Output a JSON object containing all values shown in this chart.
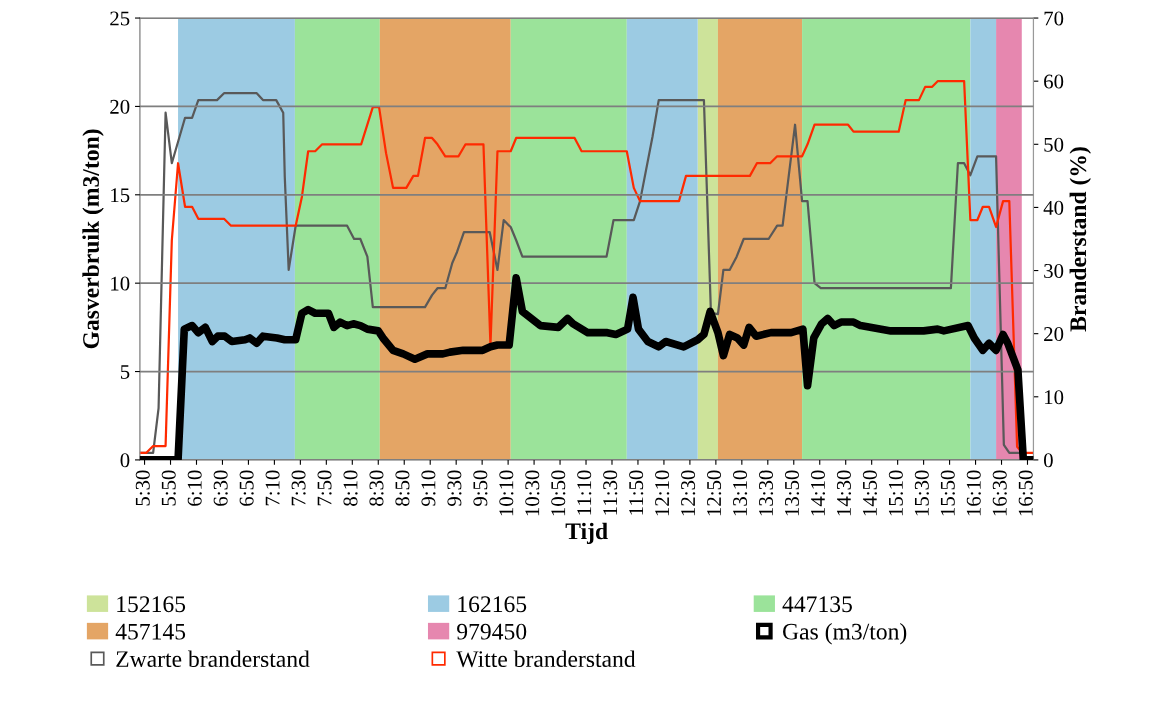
{
  "chart_data": {
    "type": "line",
    "xlabel": "Tijd",
    "ylabel": "Gasverbruik (m3/ton)",
    "y2label": "Branderstand (%)",
    "xlim": [
      5.44,
      16.91
    ],
    "xticks": [
      {
        "value": 5.5,
        "label": "5:30"
      },
      {
        "value": 5.8333,
        "label": "5:50"
      },
      {
        "value": 6.1667,
        "label": "6:10"
      },
      {
        "value": 6.5,
        "label": "6:30"
      },
      {
        "value": 6.8333,
        "label": "6:50"
      },
      {
        "value": 7.1667,
        "label": "7:10"
      },
      {
        "value": 7.5,
        "label": "7:30"
      },
      {
        "value": 7.8333,
        "label": "7:50"
      },
      {
        "value": 8.1667,
        "label": "8:10"
      },
      {
        "value": 8.5,
        "label": "8:30"
      },
      {
        "value": 8.8333,
        "label": "8:50"
      },
      {
        "value": 9.1667,
        "label": "9:10"
      },
      {
        "value": 9.5,
        "label": "9:30"
      },
      {
        "value": 9.8333,
        "label": "9:50"
      },
      {
        "value": 10.1667,
        "label": "10:10"
      },
      {
        "value": 10.5,
        "label": "10:30"
      },
      {
        "value": 10.8333,
        "label": "10:50"
      },
      {
        "value": 11.1667,
        "label": "11:10"
      },
      {
        "value": 11.5,
        "label": "11:30"
      },
      {
        "value": 11.8333,
        "label": "11:50"
      },
      {
        "value": 12.1667,
        "label": "12:10"
      },
      {
        "value": 12.5,
        "label": "12:30"
      },
      {
        "value": 12.8333,
        "label": "12:50"
      },
      {
        "value": 13.1667,
        "label": "13:10"
      },
      {
        "value": 13.5,
        "label": "13:30"
      },
      {
        "value": 13.8333,
        "label": "13:50"
      },
      {
        "value": 14.1667,
        "label": "14:10"
      },
      {
        "value": 14.5,
        "label": "14:30"
      },
      {
        "value": 14.8333,
        "label": "14:50"
      },
      {
        "value": 15.1667,
        "label": "15:10"
      },
      {
        "value": 15.5,
        "label": "15:30"
      },
      {
        "value": 15.8333,
        "label": "15:50"
      },
      {
        "value": 16.1667,
        "label": "16:10"
      },
      {
        "value": 16.5,
        "label": "16:30"
      },
      {
        "value": 16.8333,
        "label": "16:50"
      }
    ],
    "ylim": [
      0,
      25
    ],
    "yticks": [
      0,
      5,
      10,
      15,
      20,
      25
    ],
    "y2lim": [
      0,
      70
    ],
    "y2ticks": [
      0,
      10,
      20,
      30,
      40,
      50,
      60,
      70
    ],
    "grid": "y",
    "legend": "bottom",
    "marker": "none",
    "line_style": "solid",
    "bands": [
      {
        "axis": "x",
        "from": 12.6,
        "to": 12.86,
        "label": "152165",
        "color": "#cde39a"
      },
      {
        "axis": "x",
        "from": 5.93,
        "to": 7.43,
        "label": "162165",
        "color": "#9ccbe3"
      },
      {
        "axis": "x",
        "from": 7.43,
        "to": 8.52,
        "label": "447135",
        "color": "#9be39a"
      },
      {
        "axis": "x",
        "from": 8.52,
        "to": 10.2,
        "label": "457145",
        "color": "#e4a565"
      },
      {
        "axis": "x",
        "from": 16.43,
        "to": 16.76,
        "label": "979450",
        "color": "#e687af"
      },
      {
        "axis": "x",
        "from": 10.2,
        "to": 11.69,
        "color": "#9be39a"
      },
      {
        "axis": "x",
        "from": 11.69,
        "to": 12.6,
        "color": "#9ccbe3"
      },
      {
        "axis": "x",
        "from": 12.86,
        "to": 13.94,
        "color": "#e4a565"
      },
      {
        "axis": "x",
        "from": 13.94,
        "to": 16.1,
        "color": "#9be39a"
      },
      {
        "axis": "x",
        "from": 16.1,
        "to": 16.43,
        "color": "#9ccbe3"
      }
    ],
    "series": [
      {
        "name": "Gas (m3/ton)",
        "color": "#000000",
        "axis": "y",
        "x": [
          5.44,
          5.93,
          6.01,
          6.11,
          6.19,
          6.28,
          6.37,
          6.44,
          6.53,
          6.62,
          6.79,
          6.85,
          6.94,
          7.02,
          7.2,
          7.3,
          7.44,
          7.52,
          7.6,
          7.69,
          7.86,
          7.93,
          8.01,
          8.1,
          8.18,
          8.27,
          8.36,
          8.5,
          8.56,
          8.69,
          8.82,
          8.97,
          9.13,
          9.33,
          9.42,
          9.59,
          9.84,
          9.94,
          10.03,
          10.18,
          10.27,
          10.35,
          10.58,
          10.81,
          10.93,
          11.0,
          11.19,
          11.44,
          11.55,
          11.7,
          11.77,
          11.84,
          11.96,
          12.1,
          12.19,
          12.42,
          12.6,
          12.68,
          12.76,
          12.86,
          12.93,
          13.01,
          13.11,
          13.19,
          13.26,
          13.35,
          13.54,
          13.8,
          13.95,
          14.01,
          14.09,
          14.19,
          14.27,
          14.35,
          14.44,
          14.6,
          14.69,
          15.08,
          15.5,
          15.68,
          15.76,
          16.07,
          16.15,
          16.26,
          16.34,
          16.43,
          16.52,
          16.58,
          16.71,
          16.78,
          16.91
        ],
        "values": [
          0,
          0,
          7.4,
          7.6,
          7.2,
          7.5,
          6.7,
          7.0,
          7.0,
          6.7,
          6.8,
          6.9,
          6.6,
          7.0,
          6.9,
          6.8,
          6.8,
          8.3,
          8.5,
          8.3,
          8.3,
          7.5,
          7.8,
          7.6,
          7.7,
          7.6,
          7.4,
          7.3,
          6.9,
          6.2,
          6.0,
          5.7,
          6.0,
          6.0,
          6.1,
          6.2,
          6.2,
          6.4,
          6.5,
          6.5,
          10.3,
          8.4,
          7.6,
          7.5,
          8.0,
          7.7,
          7.2,
          7.2,
          7.1,
          7.4,
          9.2,
          7.4,
          6.7,
          6.4,
          6.7,
          6.4,
          6.8,
          7.1,
          8.4,
          7.2,
          5.9,
          7.1,
          6.9,
          6.5,
          7.5,
          7.0,
          7.2,
          7.2,
          7.4,
          4.2,
          6.9,
          7.7,
          8.0,
          7.6,
          7.8,
          7.8,
          7.6,
          7.3,
          7.3,
          7.4,
          7.3,
          7.6,
          6.9,
          6.2,
          6.6,
          6.2,
          7.1,
          6.6,
          5.1,
          0,
          0
        ]
      },
      {
        "name": "Zwarte branderstand",
        "color": "#595959",
        "axis": "y2",
        "x": [
          5.44,
          5.61,
          5.68,
          5.77,
          5.85,
          6.02,
          6.11,
          6.19,
          6.43,
          6.52,
          6.94,
          7.02,
          7.19,
          7.28,
          7.3,
          7.35,
          7.44,
          8.1,
          8.19,
          8.27,
          8.36,
          8.43,
          9.1,
          9.19,
          9.26,
          9.36,
          9.45,
          9.51,
          9.6,
          9.93,
          10.03,
          10.11,
          10.18,
          10.2,
          10.27,
          10.35,
          11.43,
          11.52,
          11.78,
          11.86,
          12.02,
          12.1,
          12.68,
          12.77,
          12.86,
          12.93,
          13.01,
          13.1,
          13.19,
          13.51,
          13.62,
          13.69,
          13.85,
          13.94,
          14.01,
          14.1,
          14.18,
          15.85,
          15.94,
          16.02,
          16.1,
          16.19,
          16.43,
          16.53,
          16.6,
          16.77
        ],
        "values": [
          1.1,
          1.1,
          8.2,
          55.0,
          47.0,
          54.2,
          54.2,
          57.0,
          57.0,
          58.1,
          58.1,
          57.0,
          57.0,
          55.0,
          44.8,
          30.1,
          37.1,
          37.1,
          35.0,
          35.0,
          32.2,
          24.2,
          24.2,
          26.1,
          27.2,
          27.2,
          31.2,
          32.9,
          36.1,
          36.1,
          30.1,
          38.0,
          37.1,
          36.9,
          34.8,
          32.2,
          32.2,
          38.0,
          38.0,
          41.0,
          51.2,
          57.0,
          57.0,
          23.3,
          23.1,
          30.1,
          30.1,
          32.2,
          35.0,
          35.0,
          37.1,
          37.1,
          53.1,
          41.0,
          41.0,
          28.0,
          27.2,
          27.2,
          47.0,
          47.0,
          45.1,
          48.1,
          48.1,
          2.4,
          1.1,
          1.1
        ]
      },
      {
        "name": "Witte branderstand",
        "color": "#ff2a00",
        "axis": "y2",
        "x": [
          5.44,
          5.52,
          5.61,
          5.77,
          5.85,
          5.93,
          6.02,
          6.11,
          6.19,
          6.52,
          6.61,
          7.44,
          7.52,
          7.6,
          7.69,
          7.78,
          8.28,
          8.43,
          8.51,
          8.6,
          8.69,
          8.86,
          8.95,
          9.01,
          9.1,
          9.19,
          9.26,
          9.36,
          9.53,
          9.62,
          9.85,
          9.94,
          10.03,
          10.2,
          10.27,
          11.02,
          11.11,
          11.69,
          11.78,
          11.86,
          12.36,
          12.45,
          13.27,
          13.36,
          13.53,
          13.62,
          13.94,
          14.01,
          14.1,
          14.53,
          14.6,
          15.18,
          15.27,
          15.44,
          15.52,
          15.61,
          15.68,
          16.02,
          16.1,
          16.19,
          16.26,
          16.34,
          16.43,
          16.52,
          16.6,
          16.7,
          16.77,
          16.91
        ],
        "values": [
          1.1,
          1.1,
          2.2,
          2.2,
          34.8,
          47.0,
          40.1,
          40.1,
          38.2,
          38.2,
          37.1,
          37.1,
          41.7,
          48.9,
          48.9,
          50.0,
          50.0,
          55.9,
          55.9,
          48.6,
          43.1,
          43.1,
          45.0,
          45.0,
          51.0,
          51.0,
          50.0,
          48.1,
          48.1,
          50.0,
          50.0,
          18.2,
          48.9,
          48.9,
          51.0,
          51.0,
          48.9,
          48.9,
          43.1,
          41.0,
          41.0,
          45.0,
          45.0,
          47.0,
          47.0,
          48.1,
          48.1,
          50.0,
          53.1,
          53.1,
          52.0,
          52.0,
          57.0,
          57.0,
          59.1,
          59.1,
          60.0,
          60.0,
          38.0,
          38.0,
          40.1,
          40.1,
          36.9,
          41.0,
          41.0,
          2.1,
          1.1,
          1.1
        ]
      }
    ]
  }
}
